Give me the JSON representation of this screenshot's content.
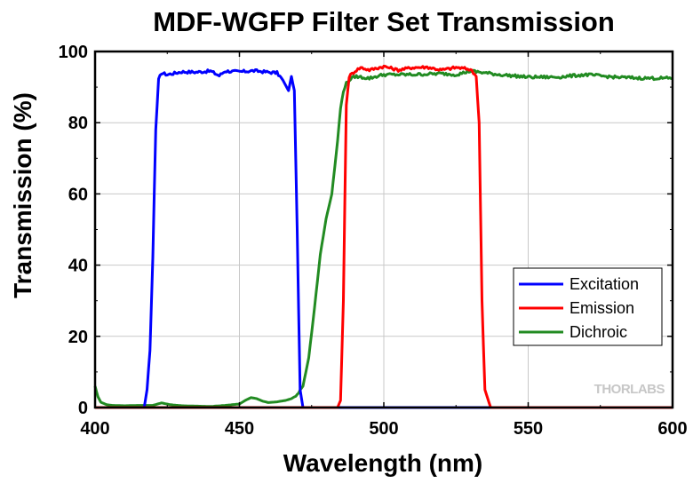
{
  "chart_data": {
    "type": "line",
    "title": "MDF-WGFP Filter Set Transmission",
    "xlabel": "Wavelength (nm)",
    "ylabel": "Transmission (%)",
    "xlim": [
      400,
      600
    ],
    "ylim": [
      0,
      100
    ],
    "xticks": [
      400,
      450,
      500,
      550,
      600
    ],
    "yticks": [
      0,
      20,
      40,
      60,
      80,
      100
    ],
    "grid": true,
    "legend_position": "right",
    "watermark": "THORLABS",
    "series": [
      {
        "name": "Excitation",
        "color": "#0000ff",
        "x": [
          400,
          410,
          417,
          418,
          419,
          420,
          421,
          422,
          423,
          425,
          430,
          435,
          440,
          443,
          445,
          450,
          455,
          460,
          463,
          465,
          467,
          468,
          469,
          470,
          471,
          472,
          475,
          480,
          490,
          500,
          550,
          600
        ],
        "y": [
          0,
          0,
          0,
          5,
          16,
          42,
          78,
          92,
          94,
          93.5,
          94.3,
          94.2,
          94.5,
          93.2,
          94.5,
          94.3,
          94.6,
          94.2,
          94.0,
          92.0,
          89.0,
          93.0,
          89.0,
          50.0,
          5.0,
          0,
          0,
          0,
          0,
          0,
          0,
          0
        ]
      },
      {
        "name": "Emission",
        "color": "#ff0000",
        "x": [
          400,
          450,
          484,
          485,
          486,
          487,
          488,
          490,
          492,
          495,
          500,
          505,
          510,
          515,
          520,
          525,
          530,
          532,
          533,
          534,
          535,
          537,
          550,
          600
        ],
        "y": [
          0,
          0,
          0,
          2,
          30,
          85,
          93,
          94.5,
          95.5,
          94.8,
          95.8,
          94.8,
          95.5,
          95.6,
          94.8,
          95.5,
          95.0,
          93.0,
          80.0,
          30.0,
          5.0,
          0,
          0,
          0
        ],
        "dip_range": [
          486,
          490
        ]
      },
      {
        "name": "Dichroic",
        "color": "#228b22",
        "x": [
          400,
          401,
          402,
          404,
          406,
          410,
          415,
          420,
          423,
          426,
          430,
          440,
          445,
          450,
          452,
          454,
          456,
          458,
          460,
          463,
          466,
          468,
          470,
          472,
          474,
          476,
          478,
          480,
          482,
          484,
          485,
          486,
          487,
          488,
          490,
          495,
          500,
          510,
          520,
          525,
          530,
          540,
          550,
          560,
          570,
          580,
          590,
          600
        ],
        "y": [
          6,
          3,
          1.5,
          0.8,
          0.6,
          0.5,
          0.6,
          0.6,
          1.3,
          0.8,
          0.5,
          0.3,
          0.6,
          1.0,
          2.0,
          2.8,
          2.5,
          1.8,
          1.4,
          1.6,
          2.0,
          2.5,
          3.5,
          6,
          14,
          28,
          43,
          53,
          60,
          75,
          84,
          89,
          91,
          92,
          93,
          92.5,
          93.5,
          93.5,
          93.8,
          93.5,
          94.5,
          93.5,
          92.8,
          92.8,
          93.5,
          92.8,
          92.5,
          92.5
        ]
      }
    ]
  }
}
